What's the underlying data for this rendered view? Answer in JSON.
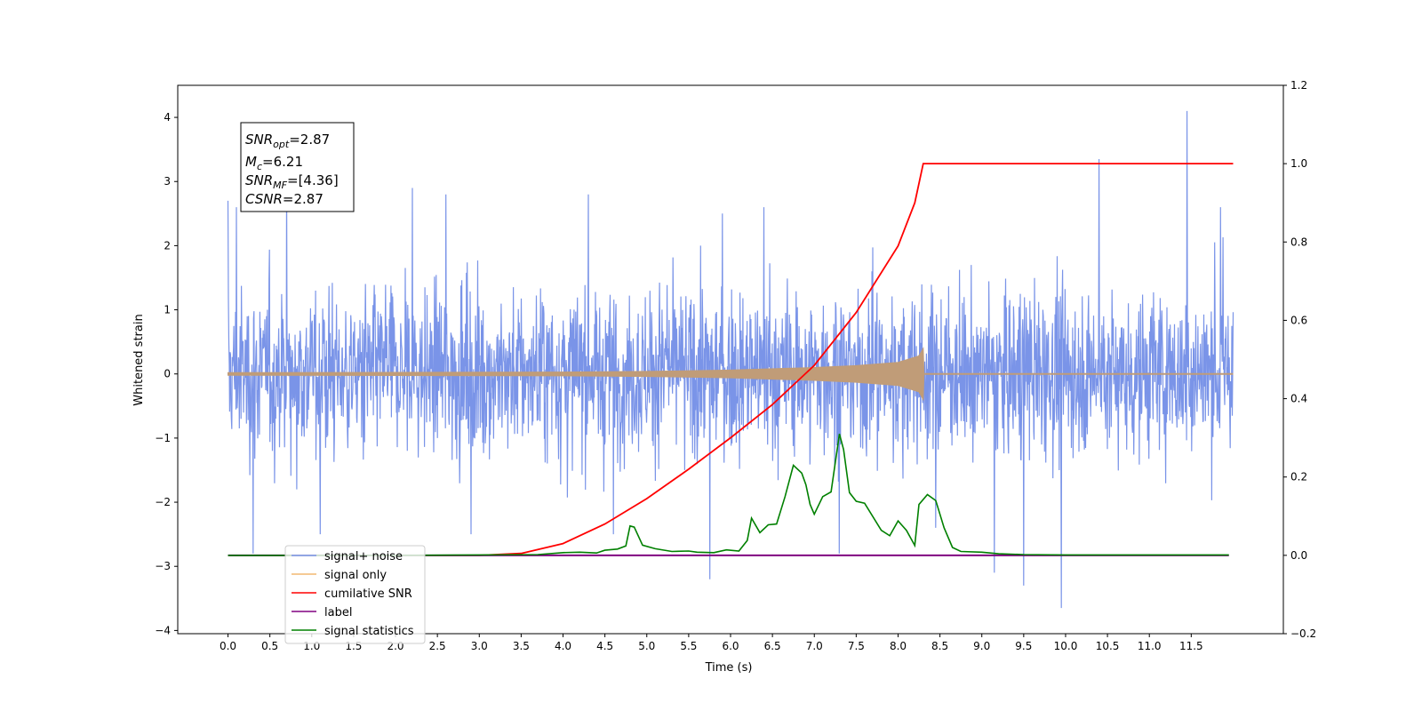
{
  "chart_data": {
    "type": "line",
    "xlabel": "Time (s)",
    "ylabel": "Whitened strain",
    "xlim": [
      -0.6,
      12.6
    ],
    "ylim": [
      -4.05,
      4.5
    ],
    "ylim_right": [
      -0.2,
      1.2
    ],
    "x_ticks": [
      "0.0",
      "0.5",
      "1.0",
      "1.5",
      "2.0",
      "2.5",
      "3.0",
      "3.5",
      "4.0",
      "4.5",
      "5.0",
      "5.5",
      "6.0",
      "6.5",
      "7.0",
      "7.5",
      "8.0",
      "8.5",
      "9.0",
      "9.5",
      "10.0",
      "10.5",
      "11.0",
      "11.5"
    ],
    "y_ticks_left": [
      "4",
      "3",
      "2",
      "1",
      "0",
      "−1",
      "−2",
      "−3",
      "−4"
    ],
    "y_ticks_right": [
      "1.2",
      "1.0",
      "0.8",
      "0.6",
      "0.4",
      "0.2",
      "0.0",
      "−0.2"
    ],
    "grid": false,
    "legend_position": "bottom-left",
    "annotation": {
      "snr_opt": {
        "main": "SNR",
        "sub": "opt",
        "value": "=2.87"
      },
      "mc": {
        "main": "M",
        "sub": "c",
        "value": "=6.21"
      },
      "snr_mf": {
        "main": "SNR",
        "sub": "MF",
        "value": "=[4.36]"
      },
      "csnr": {
        "main": "CSNR",
        "value": "=2.87"
      }
    },
    "series": [
      {
        "name": "signal+ noise",
        "color": "#7a94e8",
        "axis": "left",
        "x_range": [
          0.0,
          12.0
        ],
        "typical_range": [
          -1.6,
          1.8
        ],
        "spikes": [
          [
            0.0,
            2.7
          ],
          [
            0.1,
            2.6
          ],
          [
            0.3,
            -2.8
          ],
          [
            0.7,
            3.0
          ],
          [
            1.1,
            -2.5
          ],
          [
            2.2,
            2.9
          ],
          [
            2.6,
            2.8
          ],
          [
            2.9,
            -2.5
          ],
          [
            4.3,
            2.8
          ],
          [
            4.6,
            -2.5
          ],
          [
            5.75,
            -3.2
          ],
          [
            5.9,
            2.5
          ],
          [
            6.4,
            2.6
          ],
          [
            7.3,
            -2.8
          ],
          [
            8.45,
            -2.4
          ],
          [
            9.15,
            -3.1
          ],
          [
            9.5,
            -3.3
          ],
          [
            9.95,
            -3.65
          ],
          [
            10.4,
            3.35
          ],
          [
            11.45,
            4.1
          ],
          [
            11.85,
            2.6
          ]
        ]
      },
      {
        "name": "signal only",
        "color": "#f2b870",
        "axis": "left",
        "x_range": [
          0.0,
          12.0
        ],
        "envelope": [
          [
            0.0,
            0.02
          ],
          [
            4.0,
            0.03
          ],
          [
            5.0,
            0.04
          ],
          [
            6.0,
            0.06
          ],
          [
            7.0,
            0.1
          ],
          [
            7.5,
            0.13
          ],
          [
            8.0,
            0.18
          ],
          [
            8.25,
            0.28
          ],
          [
            8.3,
            0.4
          ],
          [
            8.31,
            0.0
          ],
          [
            12.0,
            0.0
          ]
        ]
      },
      {
        "name": "cumilative SNR",
        "color": "#ff0000",
        "axis": "right",
        "x": [
          0.0,
          1.0,
          2.0,
          3.0,
          3.5,
          4.0,
          4.5,
          5.0,
          5.5,
          6.0,
          6.5,
          7.0,
          7.5,
          8.0,
          8.2,
          8.3,
          8.31,
          12.0
        ],
        "y": [
          0.0,
          0.0,
          0.0,
          0.0,
          0.005,
          0.03,
          0.08,
          0.145,
          0.22,
          0.3,
          0.385,
          0.485,
          0.62,
          0.79,
          0.9,
          1.0,
          1.0,
          1.0
        ]
      },
      {
        "name": "label",
        "color": "#800080",
        "axis": "right",
        "x": [
          0.0,
          11.95
        ],
        "y": [
          0.0,
          0.0
        ]
      },
      {
        "name": "signal statistics",
        "color": "#008000",
        "axis": "right",
        "x": [
          0.0,
          2.0,
          3.0,
          3.7,
          4.0,
          4.2,
          4.4,
          4.5,
          4.65,
          4.75,
          4.8,
          4.85,
          4.95,
          5.1,
          5.3,
          5.5,
          5.6,
          5.8,
          5.95,
          6.1,
          6.2,
          6.25,
          6.35,
          6.45,
          6.55,
          6.65,
          6.75,
          6.85,
          6.9,
          6.95,
          7.0,
          7.1,
          7.2,
          7.3,
          7.35,
          7.42,
          7.5,
          7.6,
          7.8,
          7.9,
          8.0,
          8.1,
          8.2,
          8.25,
          8.35,
          8.45,
          8.55,
          8.65,
          8.75,
          9.0,
          9.2,
          9.5,
          10.0,
          11.0,
          11.95
        ],
        "y": [
          0.0,
          0.0,
          0.001,
          0.002,
          0.007,
          0.008,
          0.006,
          0.013,
          0.016,
          0.024,
          0.075,
          0.072,
          0.026,
          0.017,
          0.01,
          0.011,
          0.008,
          0.007,
          0.014,
          0.011,
          0.038,
          0.095,
          0.058,
          0.078,
          0.08,
          0.15,
          0.23,
          0.21,
          0.18,
          0.13,
          0.105,
          0.15,
          0.162,
          0.31,
          0.27,
          0.16,
          0.138,
          0.133,
          0.064,
          0.05,
          0.088,
          0.064,
          0.025,
          0.13,
          0.155,
          0.14,
          0.07,
          0.02,
          0.01,
          0.008,
          0.004,
          0.002,
          0.001,
          0.001,
          0.001
        ]
      }
    ]
  }
}
